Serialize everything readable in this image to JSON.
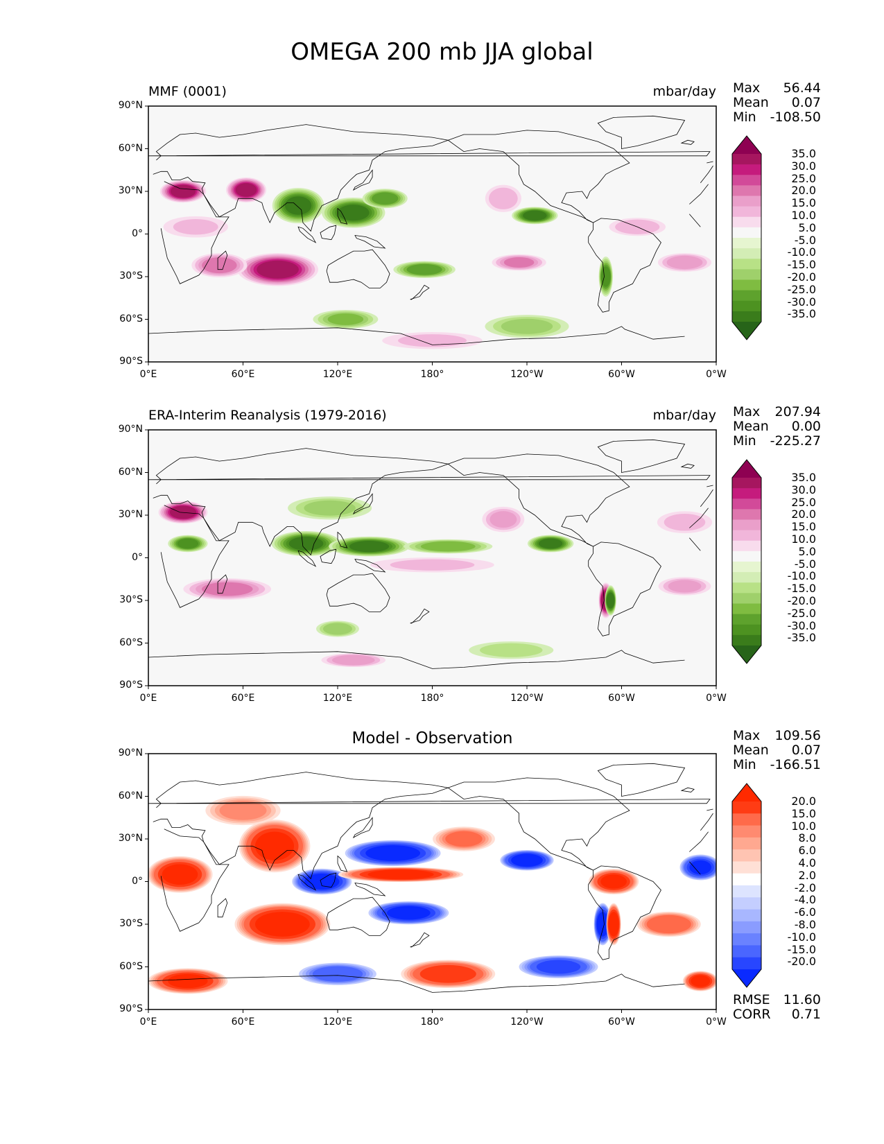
{
  "figure": {
    "title": "OMEGA 200 mb JJA global"
  },
  "axes": {
    "lat_ticks": [
      "90°N",
      "60°N",
      "30°N",
      "0°",
      "30°S",
      "60°S",
      "90°S"
    ],
    "lon_ticks": [
      "0°E",
      "60°E",
      "120°E",
      "180°",
      "120°W",
      "60°W",
      "0°W"
    ],
    "lat_range": [
      -90,
      90
    ],
    "lon_range": [
      0,
      360
    ]
  },
  "colormaps": {
    "pink_green": {
      "name": "PiYG",
      "levels": [
        "35.0",
        "30.0",
        "25.0",
        "20.0",
        "15.0",
        "10.0",
        "5.0",
        "-5.0",
        "-10.0",
        "-15.0",
        "-20.0",
        "-25.0",
        "-30.0",
        "-35.0"
      ],
      "colors": [
        "#8e0152",
        "#a6165f",
        "#c51b7d",
        "#d24a99",
        "#de77ae",
        "#ea9fca",
        "#f1b6da",
        "#f8dced",
        "#f7f7f7",
        "#e6f5d0",
        "#d3edb5",
        "#b8e186",
        "#9fd06b",
        "#7fbc41",
        "#5ea22d",
        "#4d9221",
        "#3a7c1b",
        "#276419"
      ]
    },
    "blue_red": {
      "name": "diff",
      "levels": [
        "20.0",
        "15.0",
        "10.0",
        "8.0",
        "6.0",
        "4.0",
        "2.0",
        "-2.0",
        "-4.0",
        "-6.0",
        "-8.0",
        "-10.0",
        "-15.0",
        "-20.0"
      ],
      "colors": [
        "#ff2a00",
        "#ff3c14",
        "#ff6a4a",
        "#ff8a70",
        "#ffa890",
        "#ffc4b2",
        "#ffe0d6",
        "#ffffff",
        "#dde4ff",
        "#c4ceff",
        "#a8b7ff",
        "#8a9cff",
        "#6a82ff",
        "#4a66ff",
        "#2846ff",
        "#0a2aff"
      ]
    }
  },
  "panels": [
    {
      "id": "model",
      "left_title": "MMF (0001)",
      "center_title": "",
      "units": "mbar/day",
      "stats": [
        {
          "label": "Max",
          "value": "56.44"
        },
        {
          "label": "Mean",
          "value": "0.07"
        },
        {
          "label": "Min",
          "value": "-108.50"
        }
      ],
      "colormap": "pink_green",
      "blobs": [
        {
          "lon": 22,
          "lat": 30,
          "rx": 14,
          "ry": 7,
          "v": 38
        },
        {
          "lon": 62,
          "lat": 31,
          "rx": 12,
          "ry": 8,
          "v": 36
        },
        {
          "lon": 82,
          "lat": -25,
          "rx": 26,
          "ry": 11,
          "v": 38
        },
        {
          "lon": 45,
          "lat": -22,
          "rx": 18,
          "ry": 8,
          "v": 24
        },
        {
          "lon": 95,
          "lat": 20,
          "rx": 16,
          "ry": 12,
          "v": -36
        },
        {
          "lon": 130,
          "lat": 15,
          "rx": 20,
          "ry": 10,
          "v": -36
        },
        {
          "lon": 150,
          "lat": 25,
          "rx": 14,
          "ry": 6,
          "v": -28
        },
        {
          "lon": 175,
          "lat": -25,
          "rx": 20,
          "ry": 5,
          "v": -28
        },
        {
          "lon": 245,
          "lat": 13,
          "rx": 14,
          "ry": 5,
          "v": -36
        },
        {
          "lon": 290,
          "lat": -30,
          "rx": 3,
          "ry": 14,
          "v": -30
        },
        {
          "lon": 235,
          "lat": -20,
          "rx": 18,
          "ry": 5,
          "v": 20
        },
        {
          "lon": 310,
          "lat": 5,
          "rx": 20,
          "ry": 6,
          "v": 14
        },
        {
          "lon": 340,
          "lat": -20,
          "rx": 18,
          "ry": 6,
          "v": 18
        },
        {
          "lon": 125,
          "lat": -60,
          "rx": 22,
          "ry": 6,
          "v": -20
        },
        {
          "lon": 240,
          "lat": -65,
          "rx": 30,
          "ry": 8,
          "v": -16
        },
        {
          "lon": 225,
          "lat": 25,
          "rx": 12,
          "ry": 10,
          "v": 14
        },
        {
          "lon": 30,
          "lat": 5,
          "rx": 25,
          "ry": 8,
          "v": 10
        },
        {
          "lon": 180,
          "lat": -75,
          "rx": 40,
          "ry": 6,
          "v": 10
        }
      ]
    },
    {
      "id": "obs",
      "left_title": "ERA-Interim Reanalysis (1979-2016)",
      "center_title": "",
      "units": "mbar/day",
      "stats": [
        {
          "label": "Max",
          "value": "207.94"
        },
        {
          "label": "Mean",
          "value": "0.00"
        },
        {
          "label": "Min",
          "value": "-225.27"
        }
      ],
      "colormap": "pink_green",
      "blobs": [
        {
          "lon": 22,
          "lat": 32,
          "rx": 15,
          "ry": 7,
          "v": 38
        },
        {
          "lon": 50,
          "lat": -22,
          "rx": 30,
          "ry": 7,
          "v": 22
        },
        {
          "lon": 100,
          "lat": 10,
          "rx": 22,
          "ry": 8,
          "v": -36
        },
        {
          "lon": 140,
          "lat": 8,
          "rx": 26,
          "ry": 6,
          "v": -36
        },
        {
          "lon": 190,
          "lat": 8,
          "rx": 30,
          "ry": 4,
          "v": -24
        },
        {
          "lon": 255,
          "lat": 10,
          "rx": 14,
          "ry": 5,
          "v": -36
        },
        {
          "lon": 290,
          "lat": -30,
          "rx": 3,
          "ry": 12,
          "v": 38
        },
        {
          "lon": 293,
          "lat": -30,
          "rx": 2,
          "ry": 10,
          "v": -36
        },
        {
          "lon": 25,
          "lat": 10,
          "rx": 12,
          "ry": 5,
          "v": -30
        },
        {
          "lon": 130,
          "lat": -72,
          "rx": 22,
          "ry": 4,
          "v": 18
        },
        {
          "lon": 225,
          "lat": 27,
          "rx": 14,
          "ry": 9,
          "v": 16
        },
        {
          "lon": 180,
          "lat": -5,
          "rx": 50,
          "ry": 5,
          "v": 10
        },
        {
          "lon": 340,
          "lat": 25,
          "rx": 20,
          "ry": 8,
          "v": 12
        },
        {
          "lon": 340,
          "lat": -20,
          "rx": 18,
          "ry": 6,
          "v": 16
        },
        {
          "lon": 115,
          "lat": 35,
          "rx": 30,
          "ry": 8,
          "v": -16
        },
        {
          "lon": 120,
          "lat": -50,
          "rx": 14,
          "ry": 5,
          "v": -18
        },
        {
          "lon": 230,
          "lat": -65,
          "rx": 32,
          "ry": 6,
          "v": -12
        }
      ]
    },
    {
      "id": "diff",
      "left_title": "",
      "center_title": "Model - Observation",
      "units": "",
      "stats": [
        {
          "label": "Max",
          "value": "109.56"
        },
        {
          "label": "Mean",
          "value": "0.07"
        },
        {
          "label": "Min",
          "value": "-166.51"
        }
      ],
      "extra_stats": [
        {
          "label": "RMSE",
          "value": "11.60"
        },
        {
          "label": "CORR",
          "value": "0.71"
        }
      ],
      "colormap": "blue_red",
      "blobs": [
        {
          "lon": 20,
          "lat": 5,
          "rx": 20,
          "ry": 12,
          "v": 22
        },
        {
          "lon": 80,
          "lat": 25,
          "rx": 22,
          "ry": 18,
          "v": 22
        },
        {
          "lon": 85,
          "lat": -30,
          "rx": 30,
          "ry": 14,
          "v": 24
        },
        {
          "lon": 110,
          "lat": 0,
          "rx": 18,
          "ry": 8,
          "v": -24
        },
        {
          "lon": 155,
          "lat": 20,
          "rx": 30,
          "ry": 8,
          "v": -24
        },
        {
          "lon": 165,
          "lat": -22,
          "rx": 25,
          "ry": 7,
          "v": -22
        },
        {
          "lon": 160,
          "lat": 5,
          "rx": 40,
          "ry": 4,
          "v": 22
        },
        {
          "lon": 240,
          "lat": 15,
          "rx": 16,
          "ry": 6,
          "v": -24
        },
        {
          "lon": 295,
          "lat": 0,
          "rx": 15,
          "ry": 8,
          "v": 20
        },
        {
          "lon": 288,
          "lat": -30,
          "rx": 4,
          "ry": 14,
          "v": -24
        },
        {
          "lon": 295,
          "lat": -30,
          "rx": 3,
          "ry": 14,
          "v": 24
        },
        {
          "lon": 25,
          "lat": -70,
          "rx": 25,
          "ry": 8,
          "v": 20
        },
        {
          "lon": 190,
          "lat": -65,
          "rx": 30,
          "ry": 9,
          "v": 18
        },
        {
          "lon": 260,
          "lat": -60,
          "rx": 25,
          "ry": 7,
          "v": -16
        },
        {
          "lon": 120,
          "lat": -65,
          "rx": 25,
          "ry": 7,
          "v": -12
        },
        {
          "lon": 350,
          "lat": 10,
          "rx": 12,
          "ry": 8,
          "v": -20
        },
        {
          "lon": 330,
          "lat": -30,
          "rx": 20,
          "ry": 8,
          "v": 14
        },
        {
          "lon": 200,
          "lat": 30,
          "rx": 20,
          "ry": 8,
          "v": 10
        },
        {
          "lon": 60,
          "lat": 50,
          "rx": 25,
          "ry": 10,
          "v": 8
        },
        {
          "lon": 350,
          "lat": -70,
          "rx": 10,
          "ry": 6,
          "v": 20
        }
      ]
    }
  ]
}
